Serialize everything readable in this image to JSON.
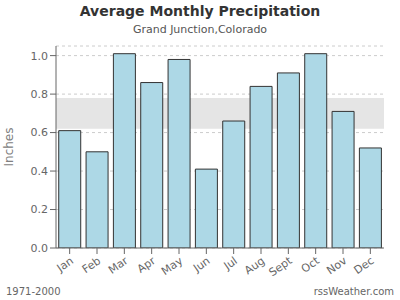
{
  "chart_data": {
    "type": "bar",
    "title": "Average Monthly Precipitation",
    "subtitle": "Grand Junction,Colorado",
    "y_label": "Inches",
    "categories": [
      "Jan",
      "Feb",
      "Mar",
      "Apr",
      "May",
      "Jun",
      "Jul",
      "Aug",
      "Sept",
      "Oct",
      "Nov",
      "Dec"
    ],
    "values": [
      0.61,
      0.5,
      1.01,
      0.86,
      0.98,
      0.41,
      0.66,
      0.84,
      0.91,
      1.01,
      0.71,
      0.52
    ],
    "color": "#ADD8E6",
    "ylim": [
      0.0,
      1.05
    ],
    "yticks": [
      {
        "value": 0,
        "label": "0.0"
      },
      0.2,
      0.4,
      0.6,
      0.8,
      {
        "value": 1,
        "label": "1.0"
      }
    ],
    "band": [
      0.62,
      0.78
    ],
    "grid": true,
    "annotations": [
      "1971-2000",
      "rssWeather.com"
    ]
  }
}
